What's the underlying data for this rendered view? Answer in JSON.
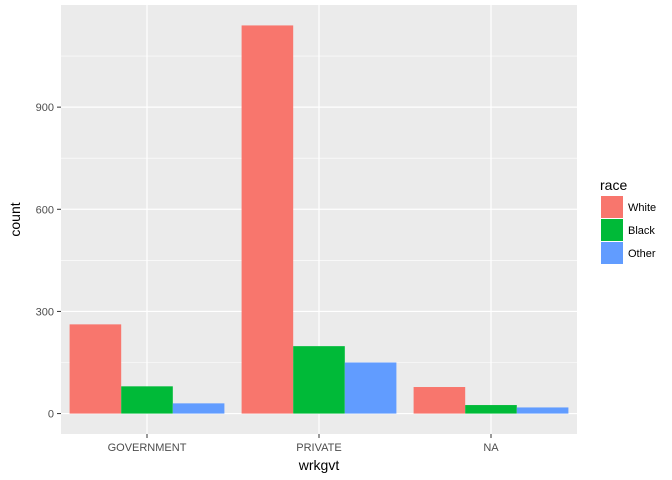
{
  "chart_data": {
    "type": "bar",
    "categories": [
      "GOVERNMENT",
      "PRIVATE",
      "NA"
    ],
    "series": [
      {
        "name": "White",
        "values": [
          262,
          1140,
          78
        ],
        "color": "#F8766D"
      },
      {
        "name": "Black",
        "values": [
          80,
          198,
          25
        ],
        "color": "#00BA38"
      },
      {
        "name": "Other",
        "values": [
          30,
          150,
          18
        ],
        "color": "#619CFF"
      }
    ],
    "title": "",
    "xlabel": "wrkgvt",
    "ylabel": "count",
    "ylim": [
      -60,
      1200
    ],
    "yticks": [
      0,
      300,
      600,
      900
    ],
    "legend_title": "race",
    "legend_position": "right",
    "grid": true,
    "panel_background": "#EBEBEB",
    "grid_color": "#FFFFFF"
  }
}
